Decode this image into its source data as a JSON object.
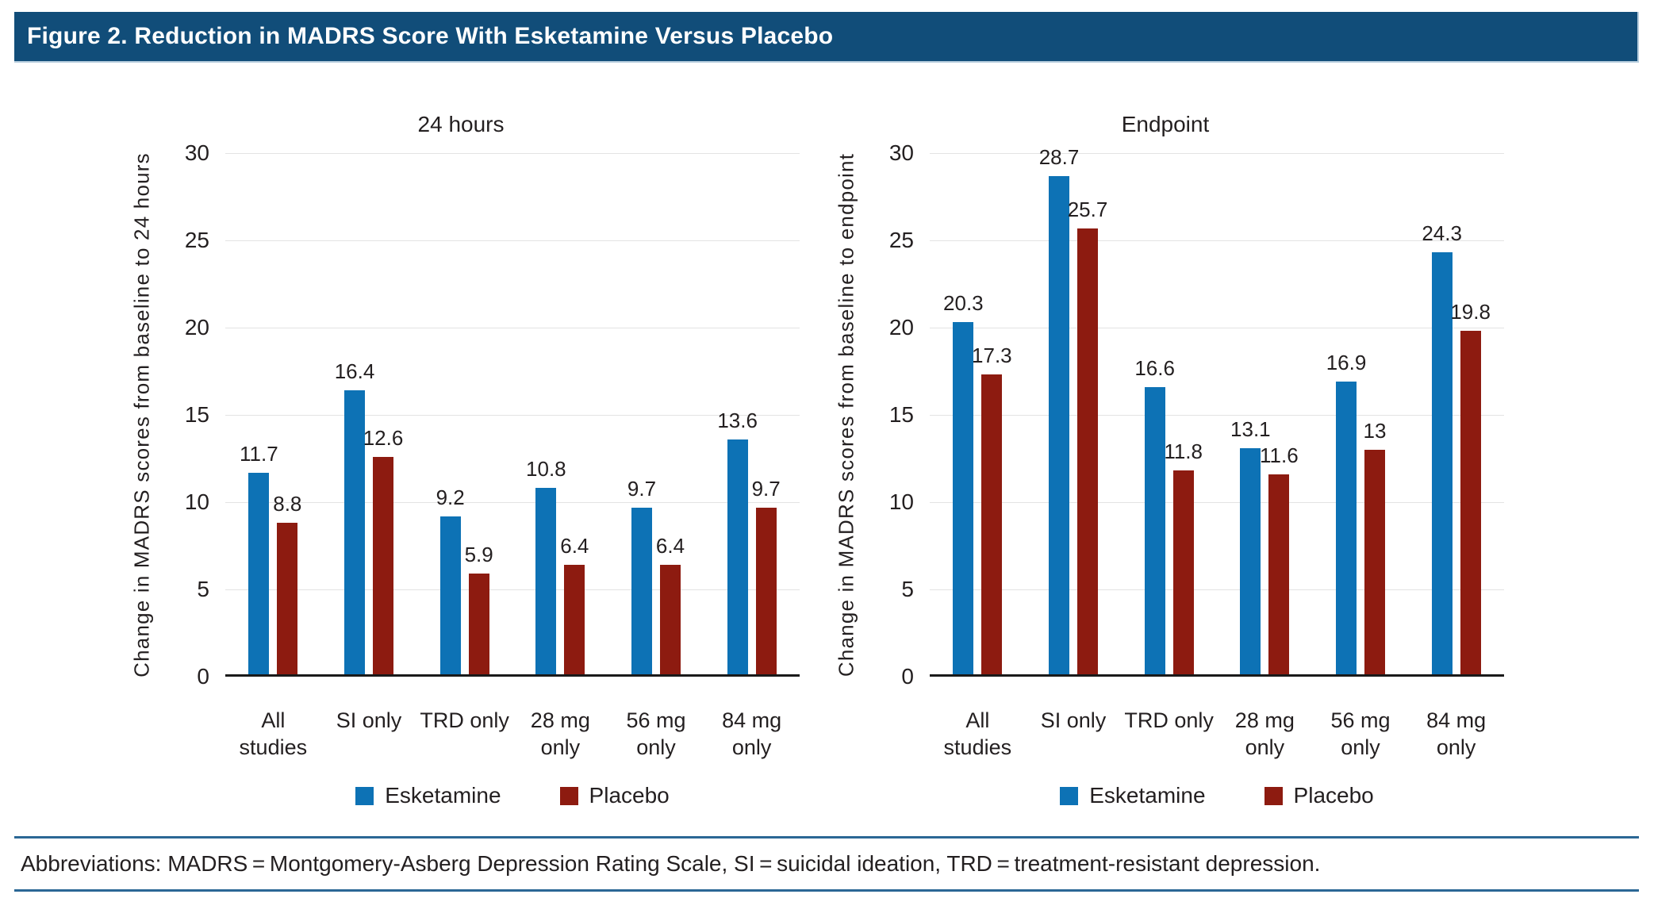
{
  "header": {
    "title": "Figure 2. Reduction in MADRS Score With Esketamine Versus Placebo"
  },
  "colors": {
    "header_bg": "#114d79",
    "esketamine": "#0d72b5",
    "placebo": "#8d1b10",
    "gridline": "#e3e3e3",
    "axis_line": "#1a1a1a",
    "footer_rule": "#2b6795",
    "text": "#231f20"
  },
  "footer": {
    "text": "Abbreviations: MADRS = Montgomery-Asberg Depression Rating Scale, SI = suicidal ideation, TRD = treatment-resistant depression."
  },
  "chart_data": [
    {
      "type": "bar",
      "title": "24 hours",
      "xlabel": "",
      "ylabel": "Change in MADRS scores from baseline to 24 hours",
      "ylim": [
        0,
        30
      ],
      "yticks": [
        0,
        5,
        10,
        15,
        20,
        25,
        30
      ],
      "grid": true,
      "legend_position": "bottom",
      "categories": [
        "All studies",
        "SI only",
        "TRD only",
        "28 mg only",
        "56 mg only",
        "84 mg only"
      ],
      "category_label_lines": [
        [
          "All",
          "studies"
        ],
        [
          "SI only"
        ],
        [
          "TRD only"
        ],
        [
          "28 mg",
          "only"
        ],
        [
          "56 mg",
          "only"
        ],
        [
          "84 mg",
          "only"
        ]
      ],
      "series": [
        {
          "name": "Esketamine",
          "color": "#0d72b5",
          "values": [
            11.7,
            16.4,
            9.2,
            10.8,
            9.7,
            13.6
          ]
        },
        {
          "name": "Placebo",
          "color": "#8d1b10",
          "values": [
            8.8,
            12.6,
            5.9,
            6.4,
            6.4,
            9.7
          ]
        }
      ]
    },
    {
      "type": "bar",
      "title": "Endpoint",
      "xlabel": "",
      "ylabel": "Change in MADRS scores from baseline to endpoint",
      "ylim": [
        0,
        30
      ],
      "yticks": [
        0,
        5,
        10,
        15,
        20,
        25,
        30
      ],
      "grid": true,
      "legend_position": "bottom",
      "categories": [
        "All studies",
        "SI only",
        "TRD only",
        "28 mg only",
        "56 mg only",
        "84 mg only"
      ],
      "category_label_lines": [
        [
          "All",
          "studies"
        ],
        [
          "SI only"
        ],
        [
          "TRD only"
        ],
        [
          "28 mg",
          "only"
        ],
        [
          "56 mg",
          "only"
        ],
        [
          "84 mg",
          "only"
        ]
      ],
      "series": [
        {
          "name": "Esketamine",
          "color": "#0d72b5",
          "values": [
            20.3,
            28.7,
            16.6,
            13.1,
            16.9,
            24.3
          ]
        },
        {
          "name": "Placebo",
          "color": "#8d1b10",
          "values": [
            17.3,
            25.7,
            11.8,
            11.6,
            13,
            19.8
          ]
        }
      ]
    }
  ]
}
